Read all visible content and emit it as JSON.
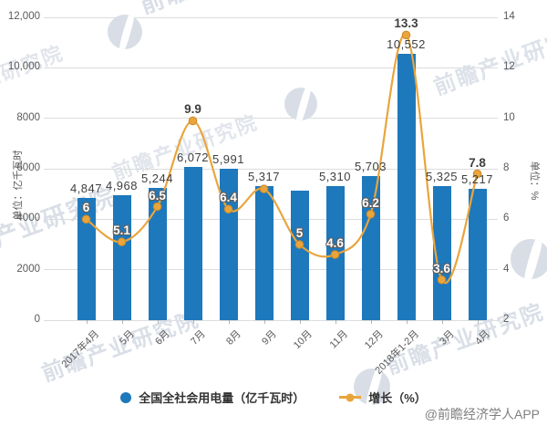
{
  "chart_data": {
    "type": "bar+line",
    "categories": [
      "2017年4月",
      "5月",
      "6月",
      "7月",
      "8月",
      "9月",
      "10月",
      "11月",
      "12月",
      "2018年1-2月",
      "3月",
      "4月"
    ],
    "series": [
      {
        "name": "全国全社会用电量（亿千瓦时）",
        "type": "bar",
        "axis": "left",
        "values": [
          4847,
          4968,
          5244,
          6072,
          5991,
          5317,
          5130,
          5310,
          5703,
          10552,
          5325,
          5217
        ],
        "labels": [
          "4,847",
          "4,968",
          "5,244",
          "6,072",
          "5,991",
          "5,317",
          "",
          "5,310",
          "5,703",
          "10,552",
          "5,325",
          "5,217"
        ],
        "color": "#1e78bc"
      },
      {
        "name": "增长（%）",
        "type": "line",
        "axis": "right",
        "values": [
          6,
          5.1,
          6.5,
          9.9,
          6.4,
          7.2,
          5,
          4.6,
          6.2,
          13.3,
          3.6,
          7.8
        ],
        "labels": [
          "6",
          "5.1",
          "6.5",
          "9.9",
          "6.4",
          "",
          "5",
          "4.6",
          "6.2",
          "13.3",
          "3.6",
          "7.8"
        ],
        "color": "#e9a53c"
      }
    ],
    "left_axis": {
      "title": "单位：亿千瓦时",
      "min": 0,
      "max": 12000,
      "ticks": [
        "0",
        "2000",
        "4000",
        "6000",
        "8000",
        "10,000",
        "12,000"
      ]
    },
    "right_axis": {
      "title": "单位：%",
      "min": 2,
      "max": 14,
      "ticks": [
        "2",
        "4",
        "6",
        "8",
        "10",
        "12",
        "14"
      ]
    },
    "grid": true,
    "legend_position": "bottom"
  },
  "watermark": {
    "brand": "前瞻产业研究院"
  },
  "attribution": "@前瞻经济学人APP",
  "colors": {
    "bar": "#1e78bc",
    "line": "#e9a53c",
    "grid": "#dcdcdc",
    "axis_text": "#595959",
    "label_dark": "#3f3f3f",
    "label_white": "#ffffff",
    "watermark": "#dadfe7",
    "attribution_text": "#7f7f7f"
  }
}
